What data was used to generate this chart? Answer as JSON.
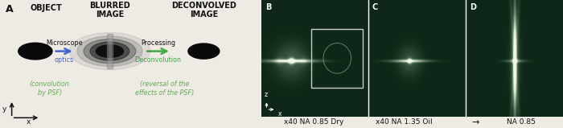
{
  "bg_color": "#eeebe5",
  "panel_A_bg": "#eeebe5",
  "fig_width": 7.0,
  "fig_height": 1.59,
  "label_A": "A",
  "label_B": "B",
  "label_C": "C",
  "label_D": "D",
  "text_object": "OBJECT",
  "text_blurred": "BLURRED\nIMAGE",
  "text_deconvolved": "DECONVOLVED\nIMAGE",
  "text_microscope": "Microscope",
  "text_optics": "optics",
  "text_processing": "Processing",
  "text_deconvolution": "Deconvolution",
  "text_convolution": "(convolution\nby PSF)",
  "text_reversal": "(reversal of the\neffects of the PSF)",
  "caption_B": "x40 NA 0.85 Dry",
  "caption_CD": "x40 NA 1.35 Oil",
  "caption_arrow": "→",
  "caption_na085": "NA 0.85",
  "arrow_blue": "#4466cc",
  "arrow_green": "#44aa44",
  "text_green": "#66aa55",
  "text_black": "#111111",
  "text_white": "#ffffff",
  "psf_dark_bg": "#1a3a2a"
}
